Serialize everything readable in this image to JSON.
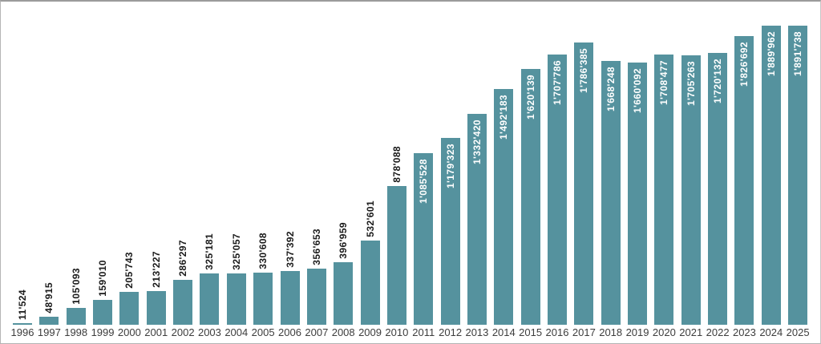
{
  "chart_data": {
    "type": "bar",
    "title": "",
    "xlabel": "",
    "ylabel": "",
    "grid": false,
    "legend": false,
    "ylim": [
      0,
      1891738
    ],
    "categories": [
      "1996",
      "1997",
      "1998",
      "1999",
      "2000",
      "2001",
      "2002",
      "2003",
      "2004",
      "2005",
      "2006",
      "2007",
      "2008",
      "2009",
      "2010",
      "2011",
      "2012",
      "2013",
      "2014",
      "2015",
      "2016",
      "2017",
      "2018",
      "2019",
      "2020",
      "2021",
      "2022",
      "2023",
      "2024",
      "2025"
    ],
    "values": [
      11524,
      48915,
      105093,
      159010,
      205743,
      213227,
      286297,
      325181,
      325057,
      330608,
      337392,
      356653,
      396959,
      532601,
      878088,
      1085528,
      1179323,
      1332420,
      1492183,
      1620139,
      1707786,
      1786385,
      1668248,
      1660092,
      1708477,
      1705263,
      1720132,
      1826692,
      1889962,
      1891738
    ],
    "value_labels": [
      "11'524",
      "48'915",
      "105'093",
      "159'010",
      "205'743",
      "213'227",
      "286'297",
      "325'181",
      "325'057",
      "330'608",
      "337'392",
      "356'653",
      "396'959",
      "532'601",
      "878'088",
      "1'085'528",
      "1'179'323",
      "1'332'420",
      "1'492'183",
      "1'620'139",
      "1'707'786",
      "1'786'385",
      "1'668'248",
      "1'660'092",
      "1'708'477",
      "1'705'263",
      "1'720'132",
      "1'826'692",
      "1'889'962",
      "1'891'738"
    ],
    "bar_color": "#55929E",
    "label_color_outside": "#1a1a1a",
    "label_color_inside": "#ffffff",
    "inside_label_threshold": 1000000,
    "axis_tick_color": "#3d3d3d"
  }
}
